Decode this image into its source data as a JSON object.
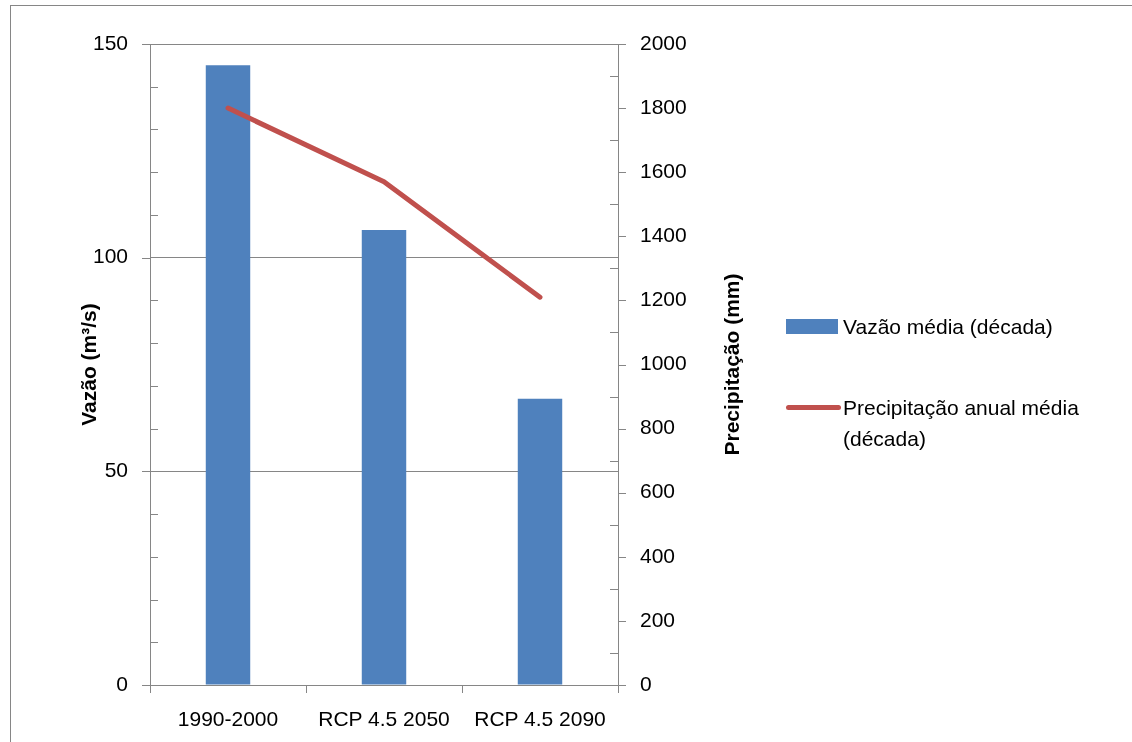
{
  "chart_data": {
    "type": "bar",
    "categories": [
      "1990-2000",
      "RCP 4.5 2050",
      "RCP 4.5 2090"
    ],
    "series": [
      {
        "name": "Vazão média (década)",
        "color": "#4f81bd",
        "values": [
          145,
          106.5,
          67
        ]
      },
      {
        "name": "Precipitação anual média (década)",
        "type": "line",
        "axis": "y2",
        "color": "#c0504d",
        "values": [
          1800,
          1570,
          1210
        ]
      }
    ],
    "ylabel": "Vazão (m³/s)",
    "y2label": "Precipitação (mm)",
    "ylim": [
      0,
      150
    ],
    "yticks": [
      0,
      {
        "value": 10,
        "label": null
      },
      {
        "value": 20,
        "label": null
      },
      {
        "value": 30,
        "label": null
      },
      {
        "value": 40,
        "label": null
      },
      50,
      {
        "value": 60,
        "label": null
      },
      {
        "value": 70,
        "label": null
      },
      {
        "value": 80,
        "label": null
      },
      {
        "value": 90,
        "label": null
      },
      100,
      {
        "value": 110,
        "label": null
      },
      {
        "value": 120,
        "label": null
      },
      {
        "value": 130,
        "label": null
      },
      {
        "value": 140,
        "label": null
      },
      150
    ],
    "y2lim": [
      0,
      2000
    ],
    "y2ticks": [
      0,
      {
        "value": 100,
        "label": null
      },
      200,
      {
        "value": 300,
        "label": null
      },
      400,
      {
        "value": 500,
        "label": null
      },
      600,
      {
        "value": 700,
        "label": null
      },
      800,
      {
        "value": 900,
        "label": null
      },
      1000,
      {
        "value": 1100,
        "label": null
      },
      1200,
      {
        "value": 1300,
        "label": null
      },
      1400,
      {
        "value": 1500,
        "label": null
      },
      1600,
      {
        "value": 1700,
        "label": null
      },
      1800,
      {
        "value": 1900,
        "label": null
      },
      2000
    ],
    "grid": "y",
    "legend": "right",
    "marker": "none"
  }
}
